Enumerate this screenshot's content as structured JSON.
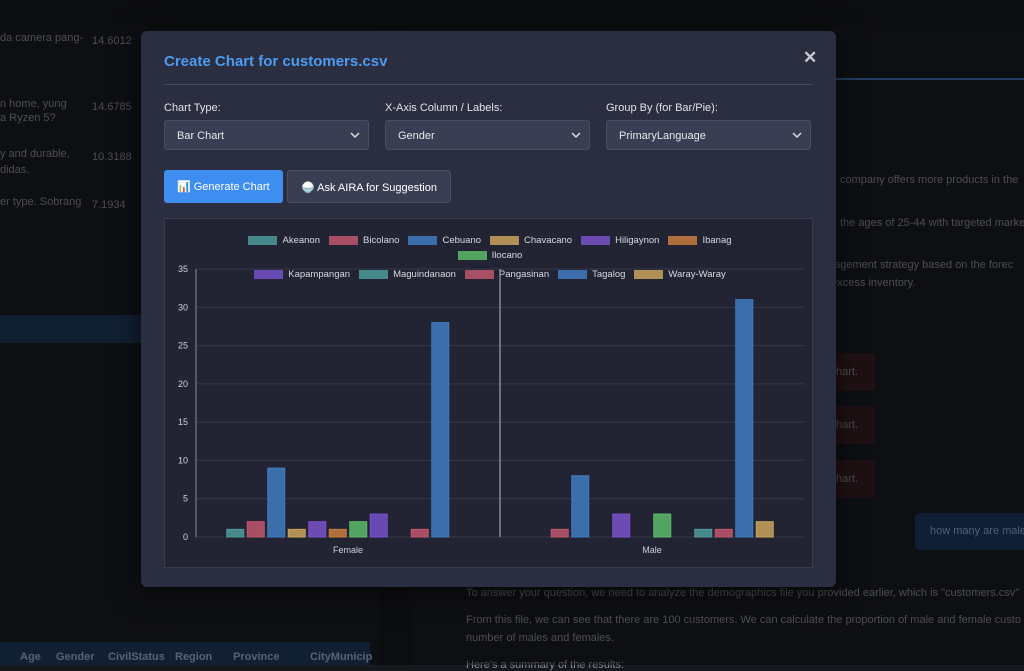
{
  "background": {
    "left_rows": [
      [
        "da camera pang-",
        "14.6012"
      ],
      [
        "n home, yung",
        "14.6785"
      ],
      [
        "a Ryzen 5?",
        ""
      ],
      [
        "y and durable,",
        "10.3188"
      ],
      [
        "didas.",
        ""
      ],
      [
        "er type. Sobrang",
        "7.1934"
      ]
    ],
    "table_header": [
      "Age",
      "Gender",
      "CivilStatus",
      "Region",
      "Province",
      "CityMunicip"
    ],
    "right_lines": [
      "company offers more products in the",
      "the ages of 25-44 with targeted marke",
      "nagement strategy based on the forec",
      "d excess inventory."
    ],
    "hints": [
      "hart.",
      "hart.",
      "hart."
    ],
    "user_message": "how many are male",
    "answer_lines": [
      "To answer your question, we need to analyze the demographics file you provided earlier, which is \"customers.csv\"",
      "From this file, we can see that there are 100 customers. We can calculate the proportion of male and female custo",
      "number of males and females.",
      "Here's a summary of the results:"
    ]
  },
  "modal": {
    "title": "Create Chart for customers.csv",
    "close": "✕",
    "fields": [
      {
        "label": "Chart Type:",
        "value": "Bar Chart"
      },
      {
        "label": "X-Axis Column / Labels:",
        "value": "Gender"
      },
      {
        "label": "Group By (for Bar/Pie):",
        "value": "PrimaryLanguage"
      }
    ],
    "buttons": [
      "📊 Generate Chart",
      "🍚 Ask AIRA for Suggestion"
    ]
  },
  "chart_data": {
    "type": "bar",
    "categories": [
      "Female",
      "Male"
    ],
    "series": [
      {
        "name": "Akeanon",
        "color": "#4e9a9a",
        "values": [
          1,
          0
        ]
      },
      {
        "name": "Bicolano",
        "color": "#c0566e",
        "values": [
          2,
          1
        ]
      },
      {
        "name": "Cebuano",
        "color": "#3f7bc0",
        "values": [
          9,
          8
        ]
      },
      {
        "name": "Chavacano",
        "color": "#c9a35a",
        "values": [
          1,
          0
        ]
      },
      {
        "name": "Hiligaynon",
        "color": "#7b52c9",
        "values": [
          2,
          3
        ]
      },
      {
        "name": "Ibanag",
        "color": "#c77c3e",
        "values": [
          1,
          0
        ]
      },
      {
        "name": "Ilocano",
        "color": "#5cba6a",
        "values": [
          2,
          3
        ]
      },
      {
        "name": "Kapampangan",
        "color": "#7452c9",
        "values": [
          3,
          0
        ]
      },
      {
        "name": "Maguindanaon",
        "color": "#4e9a9a",
        "values": [
          0,
          1
        ]
      },
      {
        "name": "Pangasinan",
        "color": "#c0566e",
        "values": [
          1,
          1
        ]
      },
      {
        "name": "Tagalog",
        "color": "#3f7bc0",
        "values": [
          28,
          31
        ]
      },
      {
        "name": "Waray-Waray",
        "color": "#c9a35a",
        "values": [
          0,
          2
        ]
      }
    ],
    "ylim": [
      0,
      35
    ],
    "yticks": [
      0,
      5,
      10,
      15,
      20,
      25,
      30,
      35
    ],
    "grid": true,
    "legend": "top"
  }
}
